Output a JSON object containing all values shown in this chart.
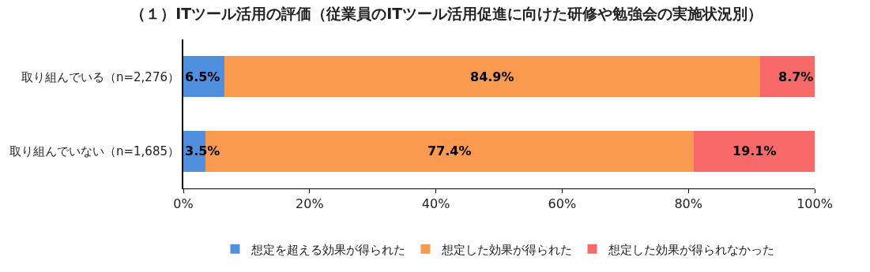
{
  "chart_data": {
    "type": "bar",
    "orientation": "horizontal",
    "stacked": true,
    "title": "（１）ITツール活用の評価（従業員のITツール活用促進に向けた研修や勉強会の実施状況別）",
    "categories": [
      "取り組んでいる（n=2,276）",
      "取り組んでいない（n=1,685）"
    ],
    "series": [
      {
        "name": "想定を超える効果が得られた",
        "color": "#4f8fde",
        "values": [
          6.5,
          3.5
        ],
        "value_labels": [
          "6.5%",
          "3.5%"
        ]
      },
      {
        "name": "想定した効果が得られた",
        "color": "#fa9a50",
        "values": [
          84.9,
          77.4
        ],
        "value_labels": [
          "84.9%",
          "77.4%"
        ]
      },
      {
        "name": "想定した効果が得られなかった",
        "color": "#f76868",
        "values": [
          8.7,
          19.1
        ],
        "value_labels": [
          "8.7%",
          "19.1%"
        ]
      }
    ],
    "xlim": [
      0,
      100
    ],
    "xticks": [
      {
        "value": 0,
        "label": "0%"
      },
      {
        "value": 20,
        "label": "20%"
      },
      {
        "value": 40,
        "label": "40%"
      },
      {
        "value": 60,
        "label": "60%"
      },
      {
        "value": 80,
        "label": "80%"
      },
      {
        "value": 100,
        "label": "100%"
      }
    ],
    "legend": "bottom"
  }
}
